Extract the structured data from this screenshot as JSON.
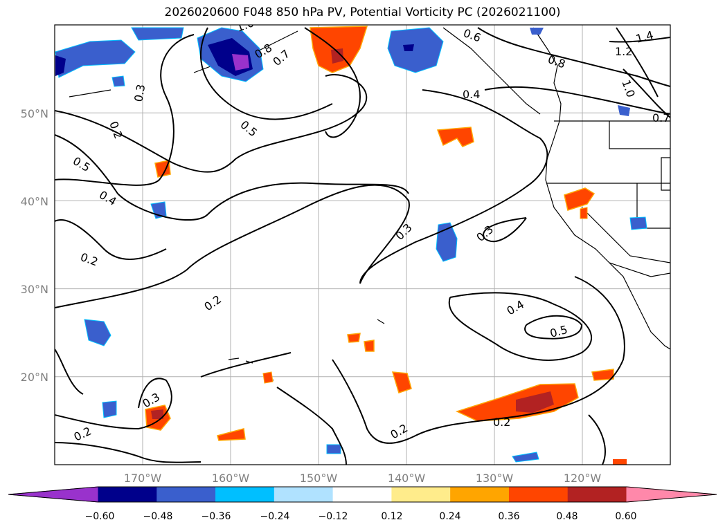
{
  "title": "2026020600 F048 850 hPa PV, Potential Vorticity PC (2026021100)",
  "map": {
    "projection": "PlateCarree",
    "lon_range": [
      -180,
      -110
    ],
    "lat_range": [
      10,
      60
    ],
    "lat_ticks": [
      {
        "value": 20,
        "label": "20°N"
      },
      {
        "value": 30,
        "label": "30°N"
      },
      {
        "value": 40,
        "label": "40°N"
      },
      {
        "value": 50,
        "label": "50°N"
      }
    ],
    "lon_ticks": [
      {
        "value": -170,
        "label": "170°W"
      },
      {
        "value": -160,
        "label": "160°W"
      },
      {
        "value": -150,
        "label": "150°W"
      },
      {
        "value": -140,
        "label": "140°W"
      },
      {
        "value": -130,
        "label": "130°W"
      },
      {
        "value": -120,
        "label": "120°W"
      }
    ],
    "contour_labels": [
      "0.2",
      "0.3",
      "0.4",
      "0.5",
      "0.6",
      "0.7",
      "0.8",
      "1.0",
      "1.2",
      "1.4"
    ]
  },
  "colorbar": {
    "colors": [
      "#9932cc",
      "#00008b",
      "#3a5fcd",
      "#00bfff",
      "#b0e2ff",
      "#ffffff",
      "#ffec8b",
      "#ffa500",
      "#ff4500",
      "#b22222",
      "#ff88aa"
    ],
    "ticks": [
      "−0.60",
      "−0.48",
      "−0.36",
      "−0.24",
      "−0.12",
      "0.12",
      "0.24",
      "0.36",
      "0.48",
      "0.60"
    ]
  },
  "colors": {
    "grid": "#b0b0b0",
    "tick_text": "#808080"
  }
}
